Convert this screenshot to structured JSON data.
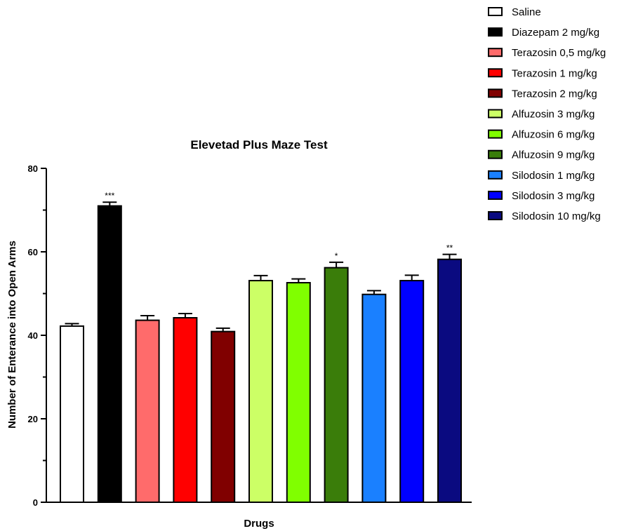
{
  "chart_data": {
    "type": "bar",
    "title": "Elevetad Plus Maze Test",
    "xlabel": "Drugs",
    "ylabel": "Number of Enterance into Open Arms",
    "ylim": [
      0,
      80
    ],
    "yticks": [
      0,
      20,
      40,
      60,
      80
    ],
    "legend_position": "top-right",
    "grid": false,
    "categories": [
      "Saline",
      "Diazepam 2 mg/kg",
      "Terazosin 0,5 mg/kg",
      "Terazosin 1 mg/kg",
      "Terazosin 2 mg/kg",
      "Alfuzosin 3 mg/kg",
      "Alfuzosin 6 mg/kg",
      "Alfuzosin 9 mg/kg",
      "Silodosin 1 mg/kg",
      "Silodosin 3 mg/kg",
      "Silodosin 10 mg/kg"
    ],
    "values": [
      42.2,
      71.0,
      43.6,
      44.2,
      40.9,
      53.1,
      52.6,
      56.2,
      49.8,
      53.1,
      58.2
    ],
    "errors": [
      0.6,
      0.9,
      1.1,
      1.0,
      0.8,
      1.2,
      0.9,
      1.3,
      0.9,
      1.3,
      1.2
    ],
    "significance": [
      "",
      "***",
      "",
      "",
      "",
      "",
      "",
      "*",
      "",
      "",
      "**"
    ],
    "colors": [
      "#ffffff",
      "#000000",
      "#ff6b6b",
      "#ff0000",
      "#800000",
      "#ccff66",
      "#80ff00",
      "#3a7d0a",
      "#1a80ff",
      "#0000ff",
      "#0a0a80"
    ]
  }
}
